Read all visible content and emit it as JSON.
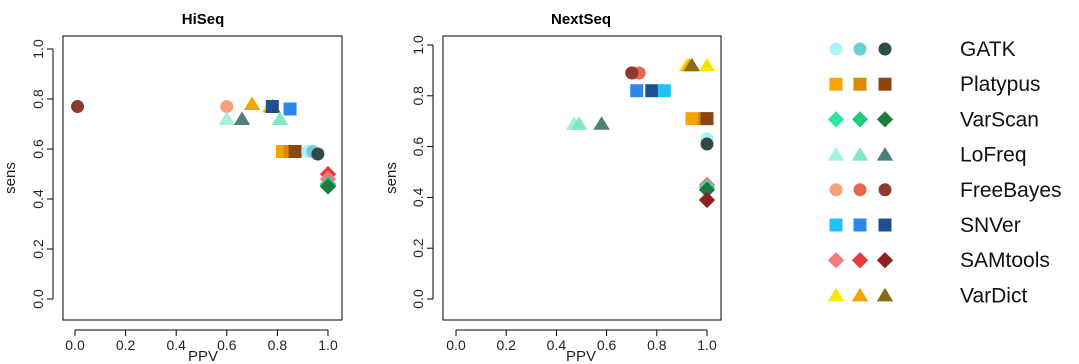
{
  "chart_data": [
    {
      "type": "scatter",
      "title": "HiSeq",
      "xlabel": "PPV",
      "ylabel": "sens",
      "xlim": [
        0,
        1
      ],
      "ylim": [
        0,
        1
      ],
      "x_ticks": [
        "0.0",
        "0.2",
        "0.4",
        "0.6",
        "0.8",
        "1.0"
      ],
      "y_ticks": [
        "0.0",
        "0.2",
        "0.4",
        "0.6",
        "0.8",
        "1.0"
      ],
      "grid": false,
      "points": [
        {
          "tool": "FreeBayes",
          "shade": 2,
          "x": 0.01,
          "y": 0.77
        },
        {
          "tool": "FreeBayes",
          "shade": 0,
          "x": 0.6,
          "y": 0.77
        },
        {
          "tool": "LoFreq",
          "shade": 0,
          "x": 0.6,
          "y": 0.72
        },
        {
          "tool": "LoFreq",
          "shade": 2,
          "x": 0.66,
          "y": 0.72
        },
        {
          "tool": "LoFreq",
          "shade": 1,
          "x": 0.81,
          "y": 0.72
        },
        {
          "tool": "VarDict",
          "shade": 1,
          "x": 0.7,
          "y": 0.78
        },
        {
          "tool": "VarDict",
          "shade": 0,
          "x": 0.77,
          "y": 0.77
        },
        {
          "tool": "VarDict",
          "shade": 2,
          "x": 0.78,
          "y": 0.77
        },
        {
          "tool": "SNVer",
          "shade": 2,
          "x": 0.78,
          "y": 0.77
        },
        {
          "tool": "SNVer",
          "shade": 1,
          "x": 0.85,
          "y": 0.76
        },
        {
          "tool": "Platypus",
          "shade": 0,
          "x": 0.82,
          "y": 0.59
        },
        {
          "tool": "Platypus",
          "shade": 1,
          "x": 0.85,
          "y": 0.59
        },
        {
          "tool": "Platypus",
          "shade": 2,
          "x": 0.87,
          "y": 0.59
        },
        {
          "tool": "GATK",
          "shade": 0,
          "x": 0.92,
          "y": 0.59
        },
        {
          "tool": "GATK",
          "shade": 1,
          "x": 0.94,
          "y": 0.59
        },
        {
          "tool": "GATK",
          "shade": 2,
          "x": 0.96,
          "y": 0.58
        },
        {
          "tool": "SAMtools",
          "shade": 1,
          "x": 1.0,
          "y": 0.5
        },
        {
          "tool": "SAMtools",
          "shade": 0,
          "x": 1.0,
          "y": 0.48
        },
        {
          "tool": "SAMtools",
          "shade": 2,
          "x": 1.0,
          "y": 0.46
        },
        {
          "tool": "VarScan",
          "shade": 0,
          "x": 1.0,
          "y": 0.46
        },
        {
          "tool": "VarScan",
          "shade": 1,
          "x": 1.0,
          "y": 0.455
        },
        {
          "tool": "VarScan",
          "shade": 2,
          "x": 1.0,
          "y": 0.45
        }
      ]
    },
    {
      "type": "scatter",
      "title": "NextSeq",
      "xlabel": "PPV",
      "ylabel": "sens",
      "xlim": [
        0,
        1
      ],
      "ylim": [
        0,
        1
      ],
      "x_ticks": [
        "0.0",
        "0.2",
        "0.4",
        "0.6",
        "0.8",
        "1.0"
      ],
      "y_ticks": [
        "0.0",
        "0.2",
        "0.4",
        "0.6",
        "0.8",
        "1.0"
      ],
      "grid": false,
      "points": [
        {
          "tool": "LoFreq",
          "shade": 0,
          "x": 0.47,
          "y": 0.69
        },
        {
          "tool": "LoFreq",
          "shade": 1,
          "x": 0.49,
          "y": 0.69
        },
        {
          "tool": "LoFreq",
          "shade": 2,
          "x": 0.58,
          "y": 0.69
        },
        {
          "tool": "FreeBayes",
          "shade": 0,
          "x": 0.71,
          "y": 0.89
        },
        {
          "tool": "FreeBayes",
          "shade": 1,
          "x": 0.73,
          "y": 0.89
        },
        {
          "tool": "FreeBayes",
          "shade": 2,
          "x": 0.7,
          "y": 0.89
        },
        {
          "tool": "SNVer",
          "shade": 1,
          "x": 0.72,
          "y": 0.82
        },
        {
          "tool": "SNVer",
          "shade": 2,
          "x": 0.78,
          "y": 0.82
        },
        {
          "tool": "SNVer",
          "shade": 0,
          "x": 0.83,
          "y": 0.82
        },
        {
          "tool": "VarDict",
          "shade": 0,
          "x": 0.92,
          "y": 0.92
        },
        {
          "tool": "VarDict",
          "shade": 1,
          "x": 0.93,
          "y": 0.92
        },
        {
          "tool": "VarDict",
          "shade": 2,
          "x": 0.94,
          "y": 0.92
        },
        {
          "tool": "VarDict",
          "shade": 0,
          "x": 1.0,
          "y": 0.92
        },
        {
          "tool": "Platypus",
          "shade": 0,
          "x": 0.94,
          "y": 0.71
        },
        {
          "tool": "Platypus",
          "shade": 1,
          "x": 0.99,
          "y": 0.71
        },
        {
          "tool": "Platypus",
          "shade": 2,
          "x": 1.0,
          "y": 0.71
        },
        {
          "tool": "GATK",
          "shade": 0,
          "x": 1.0,
          "y": 0.63
        },
        {
          "tool": "GATK",
          "shade": 2,
          "x": 1.0,
          "y": 0.61
        },
        {
          "tool": "SAMtools",
          "shade": 0,
          "x": 1.0,
          "y": 0.45
        },
        {
          "tool": "SAMtools",
          "shade": 1,
          "x": 1.0,
          "y": 0.44
        },
        {
          "tool": "VarScan",
          "shade": 0,
          "x": 1.0,
          "y": 0.44
        },
        {
          "tool": "VarScan",
          "shade": 2,
          "x": 1.0,
          "y": 0.43
        },
        {
          "tool": "SAMtools",
          "shade": 2,
          "x": 1.0,
          "y": 0.39
        }
      ]
    }
  ],
  "legend": {
    "placement": "right",
    "entries": [
      {
        "label": "GATK",
        "marker": "circle",
        "colors": [
          "#A8F4F8",
          "#6ECFD3",
          "#2E4A4A"
        ]
      },
      {
        "label": "Platypus",
        "marker": "square",
        "colors": [
          "#F4A300",
          "#D98A00",
          "#8B4513"
        ]
      },
      {
        "label": "VarScan",
        "marker": "diamond",
        "colors": [
          "#2EE6A0",
          "#1FCC7A",
          "#1E7A3E"
        ]
      },
      {
        "label": "LoFreq",
        "marker": "triangle",
        "colors": [
          "#9FF5DC",
          "#7FE6C6",
          "#4E7F7A"
        ]
      },
      {
        "label": "FreeBayes",
        "marker": "circle",
        "colors": [
          "#F4A07A",
          "#E8664E",
          "#8B3A2E"
        ]
      },
      {
        "label": "SNVer",
        "marker": "square",
        "colors": [
          "#1EC2F4",
          "#2E88E8",
          "#1F4F8C"
        ]
      },
      {
        "label": "SAMtools",
        "marker": "diamond",
        "colors": [
          "#F47A80",
          "#E83A3A",
          "#8B2020"
        ]
      },
      {
        "label": "VarDict",
        "marker": "triangle",
        "colors": [
          "#F7E600",
          "#F4A300",
          "#8B6A14"
        ]
      }
    ]
  }
}
